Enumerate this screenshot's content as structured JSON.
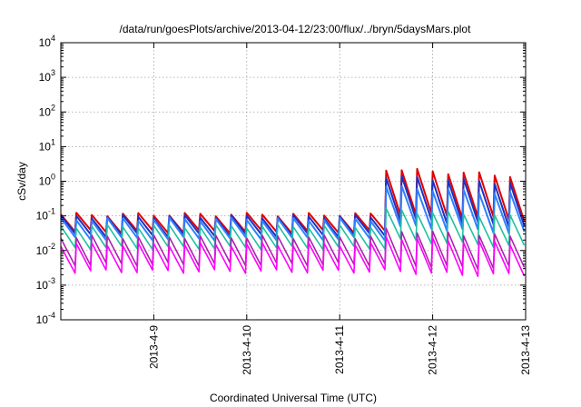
{
  "chart_data": {
    "type": "line",
    "title": "/data/run/goesPlots/archive/2013-04-12/23:00/flux/../bryn/5daysMars.plot",
    "xlabel": "Coordinated Universal Time (UTC)",
    "ylabel": "cSv/day",
    "yscale": "log",
    "ylim": [
      0.0001,
      10000
    ],
    "y_ticks": [
      {
        "base": "10",
        "exp": "-4"
      },
      {
        "base": "10",
        "exp": "-3"
      },
      {
        "base": "10",
        "exp": "-2"
      },
      {
        "base": "10",
        "exp": "-1"
      },
      {
        "base": "10",
        "exp": "0"
      },
      {
        "base": "10",
        "exp": "1"
      },
      {
        "base": "10",
        "exp": "2"
      },
      {
        "base": "10",
        "exp": "3"
      },
      {
        "base": "10",
        "exp": "4"
      }
    ],
    "xlim": [
      "2013-04-08T00:00",
      "2013-04-13T00:00"
    ],
    "x_tick_labels": [
      "2013-4-9",
      "2013-4-10",
      "2013-4-11",
      "2013-4-12",
      "2013-4-13"
    ],
    "grid": true,
    "sawtooth": {
      "cycles_per_day": 6,
      "start": "2013-04-08T00:00",
      "step_up_at": "2013-04-11T11:00"
    },
    "series": [
      {
        "color": "#e00000",
        "peak_before": 0.11,
        "trough_before": 0.035,
        "peak_after": 2.3,
        "trough_after": 0.12
      },
      {
        "color": "#2030c0",
        "peak_before": 0.095,
        "trough_before": 0.028,
        "peak_after": 1.4,
        "trough_after": 0.08
      },
      {
        "color": "#3080ff",
        "peak_before": 0.08,
        "trough_before": 0.022,
        "peak_after": 0.7,
        "trough_after": 0.05
      },
      {
        "color": "#20c0a0",
        "peak_before": 0.05,
        "trough_before": 0.012,
        "peak_after": 0.15,
        "trough_after": 0.02
      },
      {
        "color": "#b020b0",
        "peak_before": 0.025,
        "trough_before": 0.004,
        "peak_after": 0.04,
        "trough_after": 0.004
      },
      {
        "color": "#ff00ff",
        "peak_before": 0.015,
        "trough_before": 0.0025,
        "peak_after": 0.025,
        "trough_after": 0.0025
      }
    ]
  }
}
